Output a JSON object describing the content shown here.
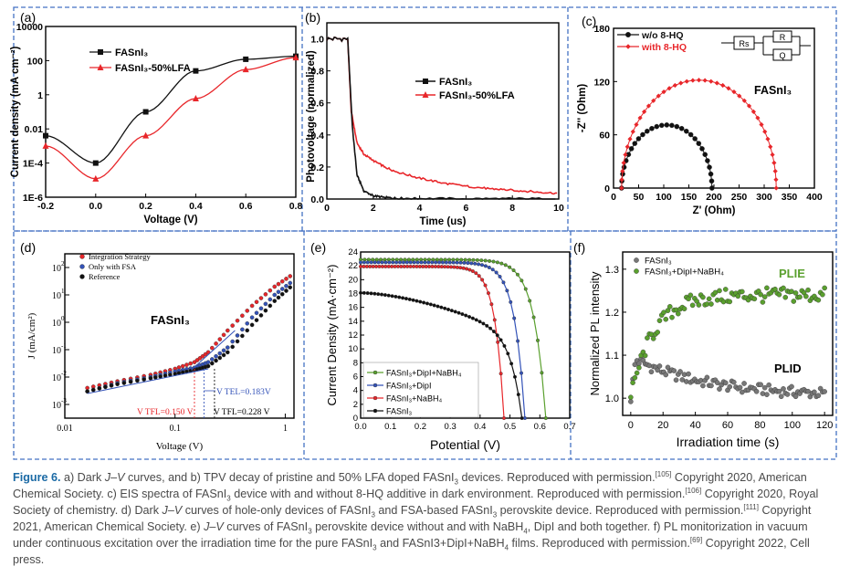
{
  "colors": {
    "black": "#111111",
    "red": "#e8262a",
    "blue": "#3352b8",
    "green": "#5aa02e",
    "grey": "#777777",
    "border": "#4472c4",
    "caption": "#4a4a4a",
    "caption_label": "#1b6aa5"
  },
  "chart_data": [
    {
      "id": "a",
      "type": "line",
      "panel_label": "(a)",
      "xlabel": "Voltage (V)",
      "ylabel": "Current density (mA cm⁻²)",
      "xlim": [
        -0.2,
        0.8
      ],
      "ylim_log10": [
        -6,
        4
      ],
      "x_ticks": [
        "-0.2",
        "0.0",
        "0.2",
        "0.4",
        "0.6",
        "0.8"
      ],
      "y_ticks": [
        "1E-6",
        "1E-4",
        "0.01",
        "1",
        "100",
        "10000"
      ],
      "legend": [
        "FASnI₃",
        "FASnI₃-50%LFA"
      ],
      "series": [
        {
          "name": "FASnI₃",
          "color": "black",
          "marker": "square",
          "x": [
            -0.2,
            0.0,
            0.2,
            0.4,
            0.6,
            0.8
          ],
          "y": [
            0.004,
            0.0001,
            0.1,
            25,
            120,
            180
          ]
        },
        {
          "name": "FASnI₃-50%LFA",
          "color": "red",
          "marker": "triangle",
          "x": [
            -0.2,
            0.0,
            0.2,
            0.4,
            0.6,
            0.8
          ],
          "y": [
            0.001,
            1.2e-05,
            0.004,
            0.6,
            30,
            150
          ]
        }
      ]
    },
    {
      "id": "b",
      "type": "line",
      "panel_label": "(b)",
      "xlabel": "Time (us)",
      "ylabel": "Photovoltage (normalized)",
      "xlim": [
        0,
        10
      ],
      "ylim": [
        0,
        1.1
      ],
      "x_ticks": [
        "0",
        "2",
        "4",
        "6",
        "8",
        "10"
      ],
      "y_ticks": [
        "0.0",
        "0.2",
        "0.4",
        "0.6",
        "0.8",
        "1.0"
      ],
      "legend": [
        "FASnI₃",
        "FASnI₃-50%LFA"
      ],
      "series": [
        {
          "name": "FASnI₃",
          "color": "black",
          "x": [
            0,
            0.9,
            1.1,
            1.3,
            1.6,
            2,
            2.5,
            3,
            4,
            6,
            8,
            10
          ],
          "y": [
            1.0,
            1.0,
            0.45,
            0.15,
            0.05,
            0.02,
            0.01,
            0.005,
            0.003,
            0.002,
            0.002,
            0.002
          ]
        },
        {
          "name": "FASnI₃-50%LFA",
          "color": "red",
          "x": [
            0,
            0.9,
            1.05,
            1.3,
            1.6,
            2,
            2.5,
            3,
            4,
            5,
            6,
            7,
            8,
            9,
            10
          ],
          "y": [
            1.0,
            1.0,
            0.55,
            0.35,
            0.28,
            0.24,
            0.2,
            0.17,
            0.13,
            0.1,
            0.08,
            0.065,
            0.055,
            0.045,
            0.035
          ]
        }
      ]
    },
    {
      "id": "c",
      "type": "scatter",
      "panel_label": "(c)",
      "xlabel": "Z' (Ohm)",
      "ylabel": "-Z'' (Ohm)",
      "xlim": [
        0,
        400
      ],
      "ylim": [
        0,
        180
      ],
      "x_ticks": [
        "0",
        "50",
        "100",
        "150",
        "200",
        "250",
        "300",
        "350",
        "400"
      ],
      "y_ticks": [
        "0",
        "60",
        "120",
        "180"
      ],
      "legend": [
        "w/o 8-HQ",
        "with 8-HQ"
      ],
      "annotation": "FASnI₃",
      "circuit": [
        "Rs",
        "R",
        "Q"
      ],
      "series": [
        {
          "name": "w/o 8-HQ",
          "color": "black",
          "marker": "circle",
          "center": 106,
          "radius": 90
        },
        {
          "name": "with 8-HQ",
          "color": "red",
          "marker": "diamond",
          "center": 170,
          "radius": 154
        }
      ]
    },
    {
      "id": "d",
      "type": "scatter",
      "panel_label": "(d)",
      "xlabel": "Voltage (V)",
      "ylabel": "J (mA/cm²)",
      "x_ticks": [
        "0.01",
        "0.1",
        "1"
      ],
      "y_tick_exponents": [
        "-3",
        "-2",
        "-1",
        "0",
        "1",
        "2"
      ],
      "legend": [
        "Integration Strategy",
        "Only with FSA",
        "Reference"
      ],
      "annotation": "FASnI₃",
      "vtfl_labels": [
        "V TFL=0.150 V",
        "V TEL=0.183V",
        "V TFL=0.228 V"
      ],
      "vtfl_values": [
        0.15,
        0.183,
        0.228
      ],
      "series": [
        {
          "name": "Integration Strategy",
          "color": "red",
          "x": [
            0.016,
            0.03,
            0.06,
            0.1,
            0.15,
            0.2,
            0.3,
            0.5,
            0.8,
            1.2
          ],
          "y": [
            0.004,
            0.007,
            0.012,
            0.02,
            0.035,
            0.08,
            0.5,
            4,
            20,
            60
          ]
        },
        {
          "name": "Only with FSA",
          "color": "blue",
          "x": [
            0.016,
            0.03,
            0.06,
            0.1,
            0.15,
            0.2,
            0.3,
            0.5,
            0.8,
            1.2
          ],
          "y": [
            0.003,
            0.006,
            0.01,
            0.016,
            0.022,
            0.035,
            0.12,
            1.5,
            10,
            35
          ]
        },
        {
          "name": "Reference",
          "color": "black",
          "x": [
            0.016,
            0.03,
            0.06,
            0.1,
            0.15,
            0.2,
            0.3,
            0.5,
            0.8,
            1.2
          ],
          "y": [
            0.003,
            0.0055,
            0.009,
            0.013,
            0.018,
            0.025,
            0.08,
            0.8,
            6,
            25
          ]
        }
      ]
    },
    {
      "id": "e",
      "type": "line",
      "panel_label": "(e)",
      "xlabel": "Potential (V)",
      "ylabel": "Current Density (mA·cm⁻²)",
      "xlim": [
        0,
        0.7
      ],
      "ylim": [
        0,
        24
      ],
      "x_ticks": [
        "0.0",
        "0.1",
        "0.2",
        "0.3",
        "0.4",
        "0.5",
        "0.6",
        "0.7"
      ],
      "y_ticks": [
        "0",
        "2",
        "4",
        "6",
        "8",
        "10",
        "12",
        "14",
        "16",
        "18",
        "20",
        "22",
        "24"
      ],
      "legend": [
        "FASnI₃+DipI+NaBH₄",
        "FASnI₃+DipI",
        "FASnI₃+NaBH₄",
        "FASnI₃"
      ],
      "series": [
        {
          "name": "FASnI₃+DipI+NaBH₄",
          "color": "green",
          "jsc": 22.9,
          "voc": 0.62,
          "k": 0.04
        },
        {
          "name": "FASnI₃+DipI",
          "color": "blue",
          "jsc": 22.5,
          "voc": 0.55,
          "k": 0.035
        },
        {
          "name": "FASnI₃+NaBH₄",
          "color": "red",
          "jsc": 21.9,
          "voc": 0.48,
          "k": 0.03
        },
        {
          "name": "FASnI₃",
          "color": "black",
          "jsc": 18.1,
          "voc": 0.54,
          "k": 0.09
        }
      ]
    },
    {
      "id": "f",
      "type": "scatter",
      "panel_label": "(f)",
      "xlabel": "Irradiation time (s)",
      "ylabel": "Normalized PL intensity",
      "xlim": [
        -5,
        125
      ],
      "ylim": [
        0.96,
        1.34
      ],
      "x_ticks": [
        "0",
        "20",
        "40",
        "60",
        "80",
        "100",
        "120"
      ],
      "y_ticks": [
        "1.0",
        "1.1",
        "1.2",
        "1.3"
      ],
      "legend": [
        "FASnI₃",
        "FASnI₃+DipI+NaBH₄"
      ],
      "annotations": [
        "PLIE",
        "PLID"
      ],
      "series": [
        {
          "name": "FASnI₃",
          "color": "grey",
          "start": 1.09,
          "end": 1.0
        },
        {
          "name": "FASnI₃+DipI+NaBH₄",
          "color": "green",
          "start": 1.0,
          "end": 1.24
        }
      ]
    }
  ],
  "caption": {
    "figure_label": "Figure 6.",
    "segments": [
      {
        "t": " a) Dark "
      },
      {
        "t": "J",
        "i": true
      },
      {
        "t": "–"
      },
      {
        "t": "V",
        "i": true
      },
      {
        "t": " curves, and b) TPV decay of pristine and 50% LFA doped FASnI"
      },
      {
        "t": "3",
        "sub": true
      },
      {
        "t": " devices. Reproduced with permission."
      },
      {
        "t": "[105]",
        "sup": true
      },
      {
        "t": " Copyright 2020, American Chemical Society. c) EIS spectra of FASnI"
      },
      {
        "t": "3",
        "sub": true
      },
      {
        "t": " device with and without 8-HQ additive in dark environment. Reproduced with permission."
      },
      {
        "t": "[106]",
        "sup": true
      },
      {
        "t": " Copyright 2020, Royal Society of chemistry. d) Dark "
      },
      {
        "t": "J",
        "i": true
      },
      {
        "t": "–"
      },
      {
        "t": "V",
        "i": true
      },
      {
        "t": " curves of hole-only devices of FASnI"
      },
      {
        "t": "3",
        "sub": true
      },
      {
        "t": " and FSA-based FASnI"
      },
      {
        "t": "3",
        "sub": true
      },
      {
        "t": " perovskite device. Reproduced with permission."
      },
      {
        "t": "[111]",
        "sup": true
      },
      {
        "t": " Copyright 2021, American Chemical Society. e) "
      },
      {
        "t": "J",
        "i": true
      },
      {
        "t": "–"
      },
      {
        "t": "V",
        "i": true
      },
      {
        "t": " curves of FASnI"
      },
      {
        "t": "3",
        "sub": true
      },
      {
        "t": " perovskite device without and with NaBH"
      },
      {
        "t": "4",
        "sub": true
      },
      {
        "t": ", DipI and both together. f) PL monitorization in vacuum under continuous excitation over the irradiation time for the pure FASnI"
      },
      {
        "t": "3",
        "sub": true
      },
      {
        "t": " and FASnI3+DipI+NaBH"
      },
      {
        "t": "4",
        "sub": true
      },
      {
        "t": " films. Reproduced with permission."
      },
      {
        "t": "[69]",
        "sup": true
      },
      {
        "t": " Copyright 2022, Cell press."
      }
    ]
  }
}
